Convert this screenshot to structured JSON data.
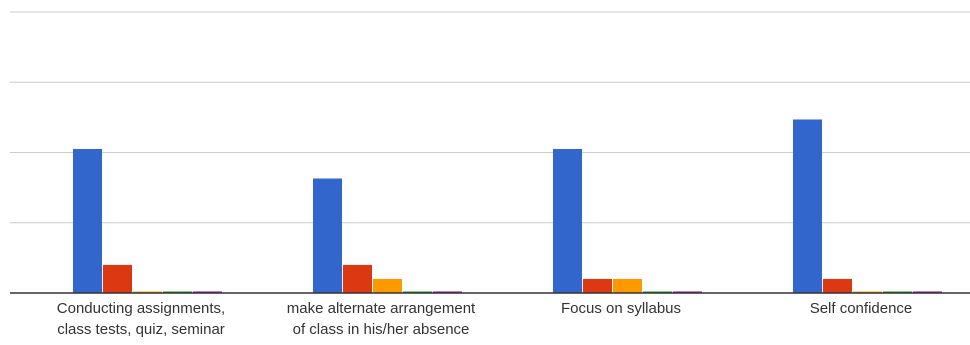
{
  "chart_data": {
    "type": "bar",
    "categories": [
      [
        "Conducting assignments,",
        "class tests, quiz, seminar"
      ],
      [
        "make alternate arrangement",
        "of class in his/her absence"
      ],
      [
        "Focus on syllabus"
      ],
      [
        "Self confidence"
      ]
    ],
    "series": [
      {
        "color": "#3366cc",
        "values": [
          20.5,
          16.3,
          20.5,
          24.7
        ]
      },
      {
        "color": "#dc3912",
        "values": [
          4.0,
          4.0,
          2.0,
          2.0
        ]
      },
      {
        "color": "#ff9900",
        "values": [
          0,
          2.0,
          2.0,
          0
        ]
      },
      {
        "color": "#109618",
        "values": [
          0,
          0,
          0,
          0
        ]
      },
      {
        "color": "#990099",
        "values": [
          0,
          0,
          0,
          0
        ]
      }
    ],
    "ylim": [
      0,
      40
    ],
    "grid": true,
    "legend": "none"
  }
}
